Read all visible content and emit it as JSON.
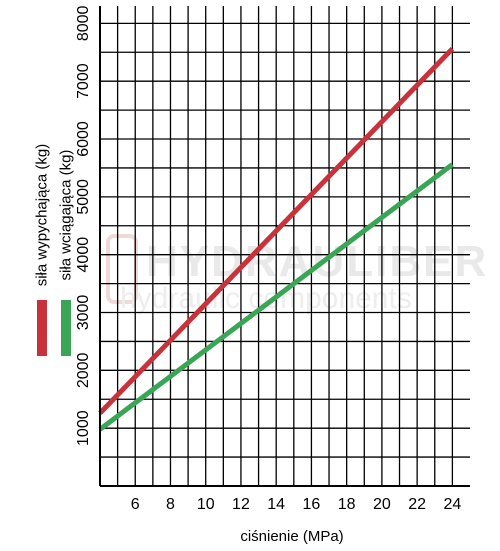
{
  "chart_data": {
    "type": "line",
    "title": "",
    "xlabel": "ciśnienie (MPa)",
    "ylabel": "",
    "xlim": [
      4,
      25
    ],
    "ylim": [
      0,
      8300
    ],
    "x_ticks": [
      6,
      8,
      10,
      12,
      14,
      16,
      18,
      20,
      22,
      24
    ],
    "y_ticks": [
      1000,
      2000,
      3000,
      4000,
      5000,
      6000,
      7000,
      8000
    ],
    "grid": true,
    "legend_position": "left",
    "series": [
      {
        "name": "siła wypychająca (kg)",
        "color": "#c8323a",
        "x": [
          4,
          24
        ],
        "y": [
          1260,
          7560
        ]
      },
      {
        "name": "siła wciągająca (kg)",
        "color": "#3aa655",
        "x": [
          4,
          24
        ],
        "y": [
          980,
          5560
        ]
      }
    ]
  },
  "watermark": {
    "brand": "HYDRAULIBER",
    "tagline": "hydraulic components",
    "logo": "H"
  }
}
